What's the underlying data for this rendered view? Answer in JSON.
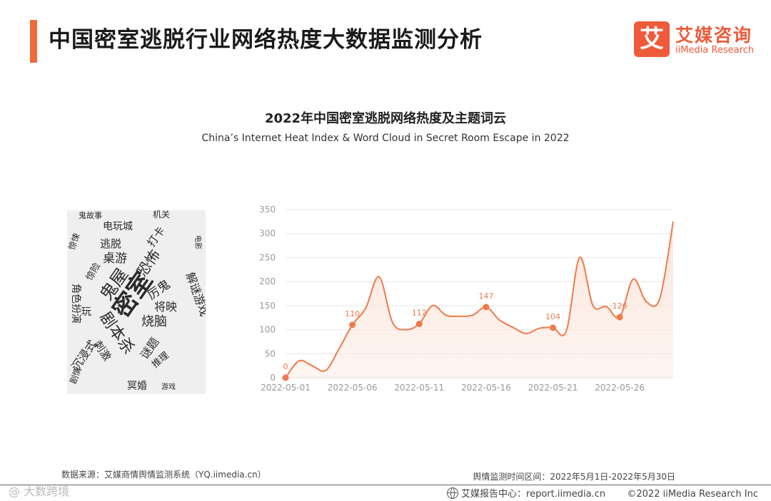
{
  "header": {
    "title": "中国密室逃脱行业网络热度大数据监测分析"
  },
  "logo": {
    "mark": "艾",
    "name_cn": "艾媒咨询",
    "name_en": "iiMedia Research",
    "color": "#ef5a3a"
  },
  "chart_data": {
    "type": "area",
    "title": "2022年中国密室逃脱网络热度及主题词云",
    "subtitle": "China’s Internet Heat Index & Word Cloud in Secret Room Escape in 2022",
    "x": [
      "2022-05-01",
      "2022-05-02",
      "2022-05-03",
      "2022-05-04",
      "2022-05-05",
      "2022-05-06",
      "2022-05-07",
      "2022-05-08",
      "2022-05-09",
      "2022-05-10",
      "2022-05-11",
      "2022-05-12",
      "2022-05-13",
      "2022-05-14",
      "2022-05-15",
      "2022-05-16",
      "2022-05-17",
      "2022-05-18",
      "2022-05-19",
      "2022-05-20",
      "2022-05-21",
      "2022-05-22",
      "2022-05-23",
      "2022-05-24",
      "2022-05-25",
      "2022-05-26",
      "2022-05-27",
      "2022-05-28",
      "2022-05-29",
      "2022-05-30"
    ],
    "series": [
      {
        "values": [
          0,
          35,
          25,
          15,
          60,
          110,
          145,
          210,
          115,
          100,
          112,
          150,
          130,
          128,
          130,
          147,
          120,
          105,
          92,
          103,
          104,
          97,
          250,
          150,
          148,
          126,
          205,
          158,
          165,
          325
        ]
      }
    ],
    "labeled_points": [
      {
        "x": "2022-05-01",
        "y": 0,
        "label": "0"
      },
      {
        "x": "2022-05-06",
        "y": 110,
        "label": "110"
      },
      {
        "x": "2022-05-11",
        "y": 112,
        "label": "112"
      },
      {
        "x": "2022-05-16",
        "y": 147,
        "label": "147"
      },
      {
        "x": "2022-05-21",
        "y": 104,
        "label": "104"
      },
      {
        "x": "2022-05-26",
        "y": 126,
        "label": "126"
      }
    ],
    "x_tick_labels": [
      "2022-05-01",
      "2022-05-06",
      "2022-05-11",
      "2022-05-16",
      "2022-05-21",
      "2022-05-26"
    ],
    "y_ticks": [
      0,
      50,
      100,
      150,
      200,
      250,
      300,
      350
    ],
    "ylim": [
      0,
      350
    ],
    "grid": true,
    "line_color": "#ef7a4a",
    "fill_color": "#fbe3d8"
  },
  "wordcloud": {
    "words": [
      "密室",
      "鬼屋",
      "剧本杀",
      "恐怖",
      "惊悚",
      "逃脱",
      "解谜游戏",
      "桌游",
      "烧脑",
      "沉浸式",
      "电玩城",
      "角色扮演",
      "将映",
      "剧情",
      "冥婚",
      "机关",
      "谜题",
      "厉鬼",
      "刺激",
      "打卡",
      "玩",
      "推理",
      "电影",
      "鬼故事",
      "惊险",
      "游戏"
    ]
  },
  "footer": {
    "source": "数据来源：艾媒商情舆情监测系统（YQ.iimedia.cn）",
    "period": "舆情监测时间区间：2022年5月1日-2022年5月30日",
    "report_center": "艾媒报告中心：report.iimedia.cn",
    "copyright": "©2022  iiMedia Research  Inc",
    "watermark": "@ 大数跨境"
  }
}
